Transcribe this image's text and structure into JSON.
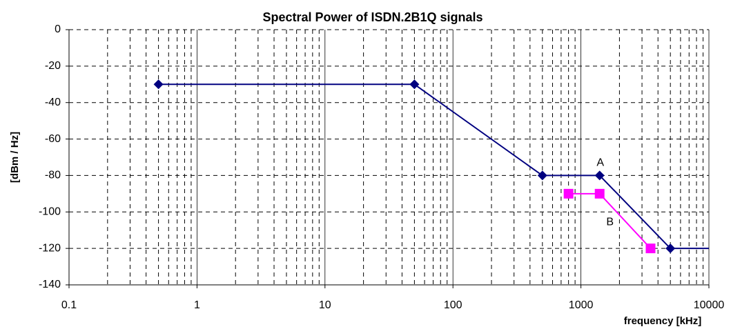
{
  "chart_data": {
    "type": "line",
    "title": "Spectral Power of ISDN.2B1Q signals",
    "x_label": "frequency [kHz]",
    "y_label": "[dBm / Hz]",
    "xscale": "log",
    "xlim": [
      0.1,
      10000
    ],
    "xticks": [
      0.1,
      1,
      10,
      100,
      1000,
      10000
    ],
    "ylim": [
      -140,
      0
    ],
    "yticks": [
      -140,
      -120,
      -100,
      -80,
      -60,
      -40,
      -20,
      0
    ],
    "grid": true,
    "series": [
      {
        "name": "A",
        "color": "#000080",
        "marker": "diamond",
        "x": [
          0.5,
          50,
          500,
          1400,
          5000,
          10000
        ],
        "values": [
          -30,
          -30,
          -80,
          -80,
          -120,
          -120
        ]
      },
      {
        "name": "B",
        "color": "#ff00ff",
        "marker": "square",
        "x": [
          800,
          1400,
          3500
        ],
        "values": [
          -90,
          -90,
          -120
        ]
      }
    ]
  }
}
